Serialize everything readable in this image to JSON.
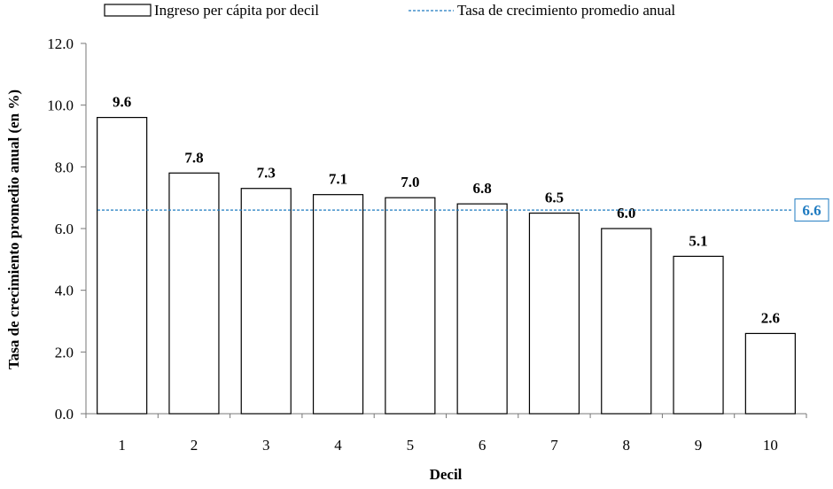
{
  "chart_data": {
    "type": "bar",
    "categories": [
      "1",
      "2",
      "3",
      "4",
      "5",
      "6",
      "7",
      "8",
      "9",
      "10"
    ],
    "series": [
      {
        "name": "Ingreso per cápita por decil",
        "values": [
          9.6,
          7.8,
          7.3,
          7.1,
          7.0,
          6.8,
          6.5,
          6.0,
          5.1,
          2.6
        ]
      }
    ],
    "data_labels": [
      "9.6",
      "7.8",
      "7.3",
      "7.1",
      "7.0",
      "6.8",
      "6.5",
      "6.0",
      "5.1",
      "2.6"
    ],
    "reference_line": {
      "name": "Tasa de crecimiento promedio anual",
      "value": 6.6,
      "label": "6.6",
      "style": "dashed"
    },
    "xlabel": "Decil",
    "ylabel": "Tasa de crecimiento promedio anual (en %)",
    "ylim": [
      0,
      12
    ],
    "yticks": [
      "0.0",
      "2.0",
      "4.0",
      "6.0",
      "8.0",
      "10.0",
      "12.0"
    ],
    "grid": false,
    "legend_position": "top",
    "colors": {
      "bar_fill": "#ffffff",
      "bar_stroke": "#000000",
      "reference_line": "#1f7bc1"
    }
  }
}
